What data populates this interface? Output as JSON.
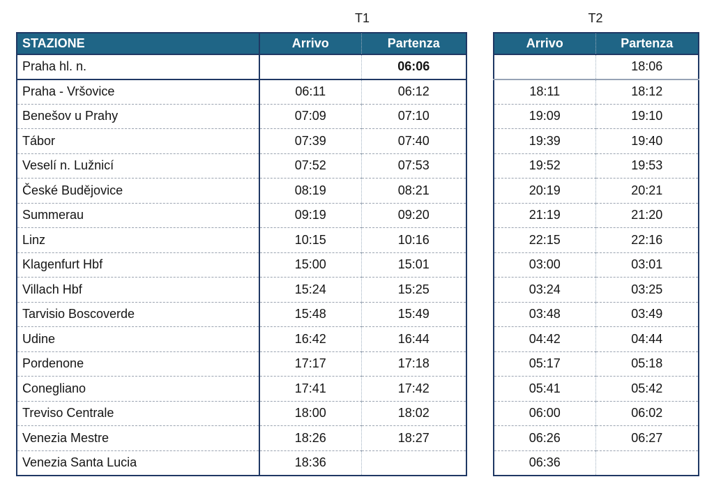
{
  "colors": {
    "header_bg": "#1F6586",
    "border_navy": "#1F3864",
    "row_divider": "#9aa3b0",
    "header_text": "#ffffff",
    "body_text": "#141414"
  },
  "t1": {
    "label": "T1",
    "headers": {
      "station": "STAZIONE",
      "arrivo": "Arrivo",
      "partenza": "Partenza"
    },
    "rows": [
      {
        "station": "Praha hl. n.",
        "arrivo": "",
        "partenza": "06:06",
        "partenza_bold": true
      },
      {
        "station": "Praha - Vršovice",
        "arrivo": "06:11",
        "partenza": "06:12"
      },
      {
        "station": "Benešov u Prahy",
        "arrivo": "07:09",
        "partenza": "07:10"
      },
      {
        "station": "Tábor",
        "arrivo": "07:39",
        "partenza": "07:40"
      },
      {
        "station": "Veselí n. Lužnicí",
        "arrivo": "07:52",
        "partenza": "07:53"
      },
      {
        "station": "České Budějovice",
        "arrivo": "08:19",
        "partenza": "08:21"
      },
      {
        "station": "Summerau",
        "arrivo": "09:19",
        "partenza": "09:20"
      },
      {
        "station": "Linz",
        "arrivo": "10:15",
        "partenza": "10:16"
      },
      {
        "station": "Klagenfurt Hbf",
        "arrivo": "15:00",
        "partenza": "15:01"
      },
      {
        "station": "Villach Hbf",
        "arrivo": "15:24",
        "partenza": "15:25"
      },
      {
        "station": "Tarvisio Boscoverde",
        "arrivo": "15:48",
        "partenza": "15:49"
      },
      {
        "station": "Udine",
        "arrivo": "16:42",
        "partenza": "16:44"
      },
      {
        "station": "Pordenone",
        "arrivo": "17:17",
        "partenza": "17:18"
      },
      {
        "station": "Conegliano",
        "arrivo": "17:41",
        "partenza": "17:42"
      },
      {
        "station": "Treviso Centrale",
        "arrivo": "18:00",
        "partenza": "18:02"
      },
      {
        "station": "Venezia Mestre",
        "arrivo": "18:26",
        "partenza": "18:27"
      },
      {
        "station": "Venezia Santa Lucia",
        "arrivo": "18:36",
        "partenza": ""
      }
    ]
  },
  "t2": {
    "label": "T2",
    "headers": {
      "arrivo": "Arrivo",
      "partenza": "Partenza"
    },
    "rows": [
      {
        "arrivo": "",
        "partenza": "18:06"
      },
      {
        "arrivo": "18:11",
        "partenza": "18:12"
      },
      {
        "arrivo": "19:09",
        "partenza": "19:10"
      },
      {
        "arrivo": "19:39",
        "partenza": "19:40"
      },
      {
        "arrivo": "19:52",
        "partenza": "19:53"
      },
      {
        "arrivo": "20:19",
        "partenza": "20:21"
      },
      {
        "arrivo": "21:19",
        "partenza": "21:20"
      },
      {
        "arrivo": "22:15",
        "partenza": "22:16"
      },
      {
        "arrivo": "03:00",
        "partenza": "03:01"
      },
      {
        "arrivo": "03:24",
        "partenza": "03:25"
      },
      {
        "arrivo": "03:48",
        "partenza": "03:49"
      },
      {
        "arrivo": "04:42",
        "partenza": "04:44"
      },
      {
        "arrivo": "05:17",
        "partenza": "05:18"
      },
      {
        "arrivo": "05:41",
        "partenza": "05:42"
      },
      {
        "arrivo": "06:00",
        "partenza": "06:02"
      },
      {
        "arrivo": "06:26",
        "partenza": "06:27"
      },
      {
        "arrivo": "06:36",
        "partenza": ""
      }
    ]
  }
}
